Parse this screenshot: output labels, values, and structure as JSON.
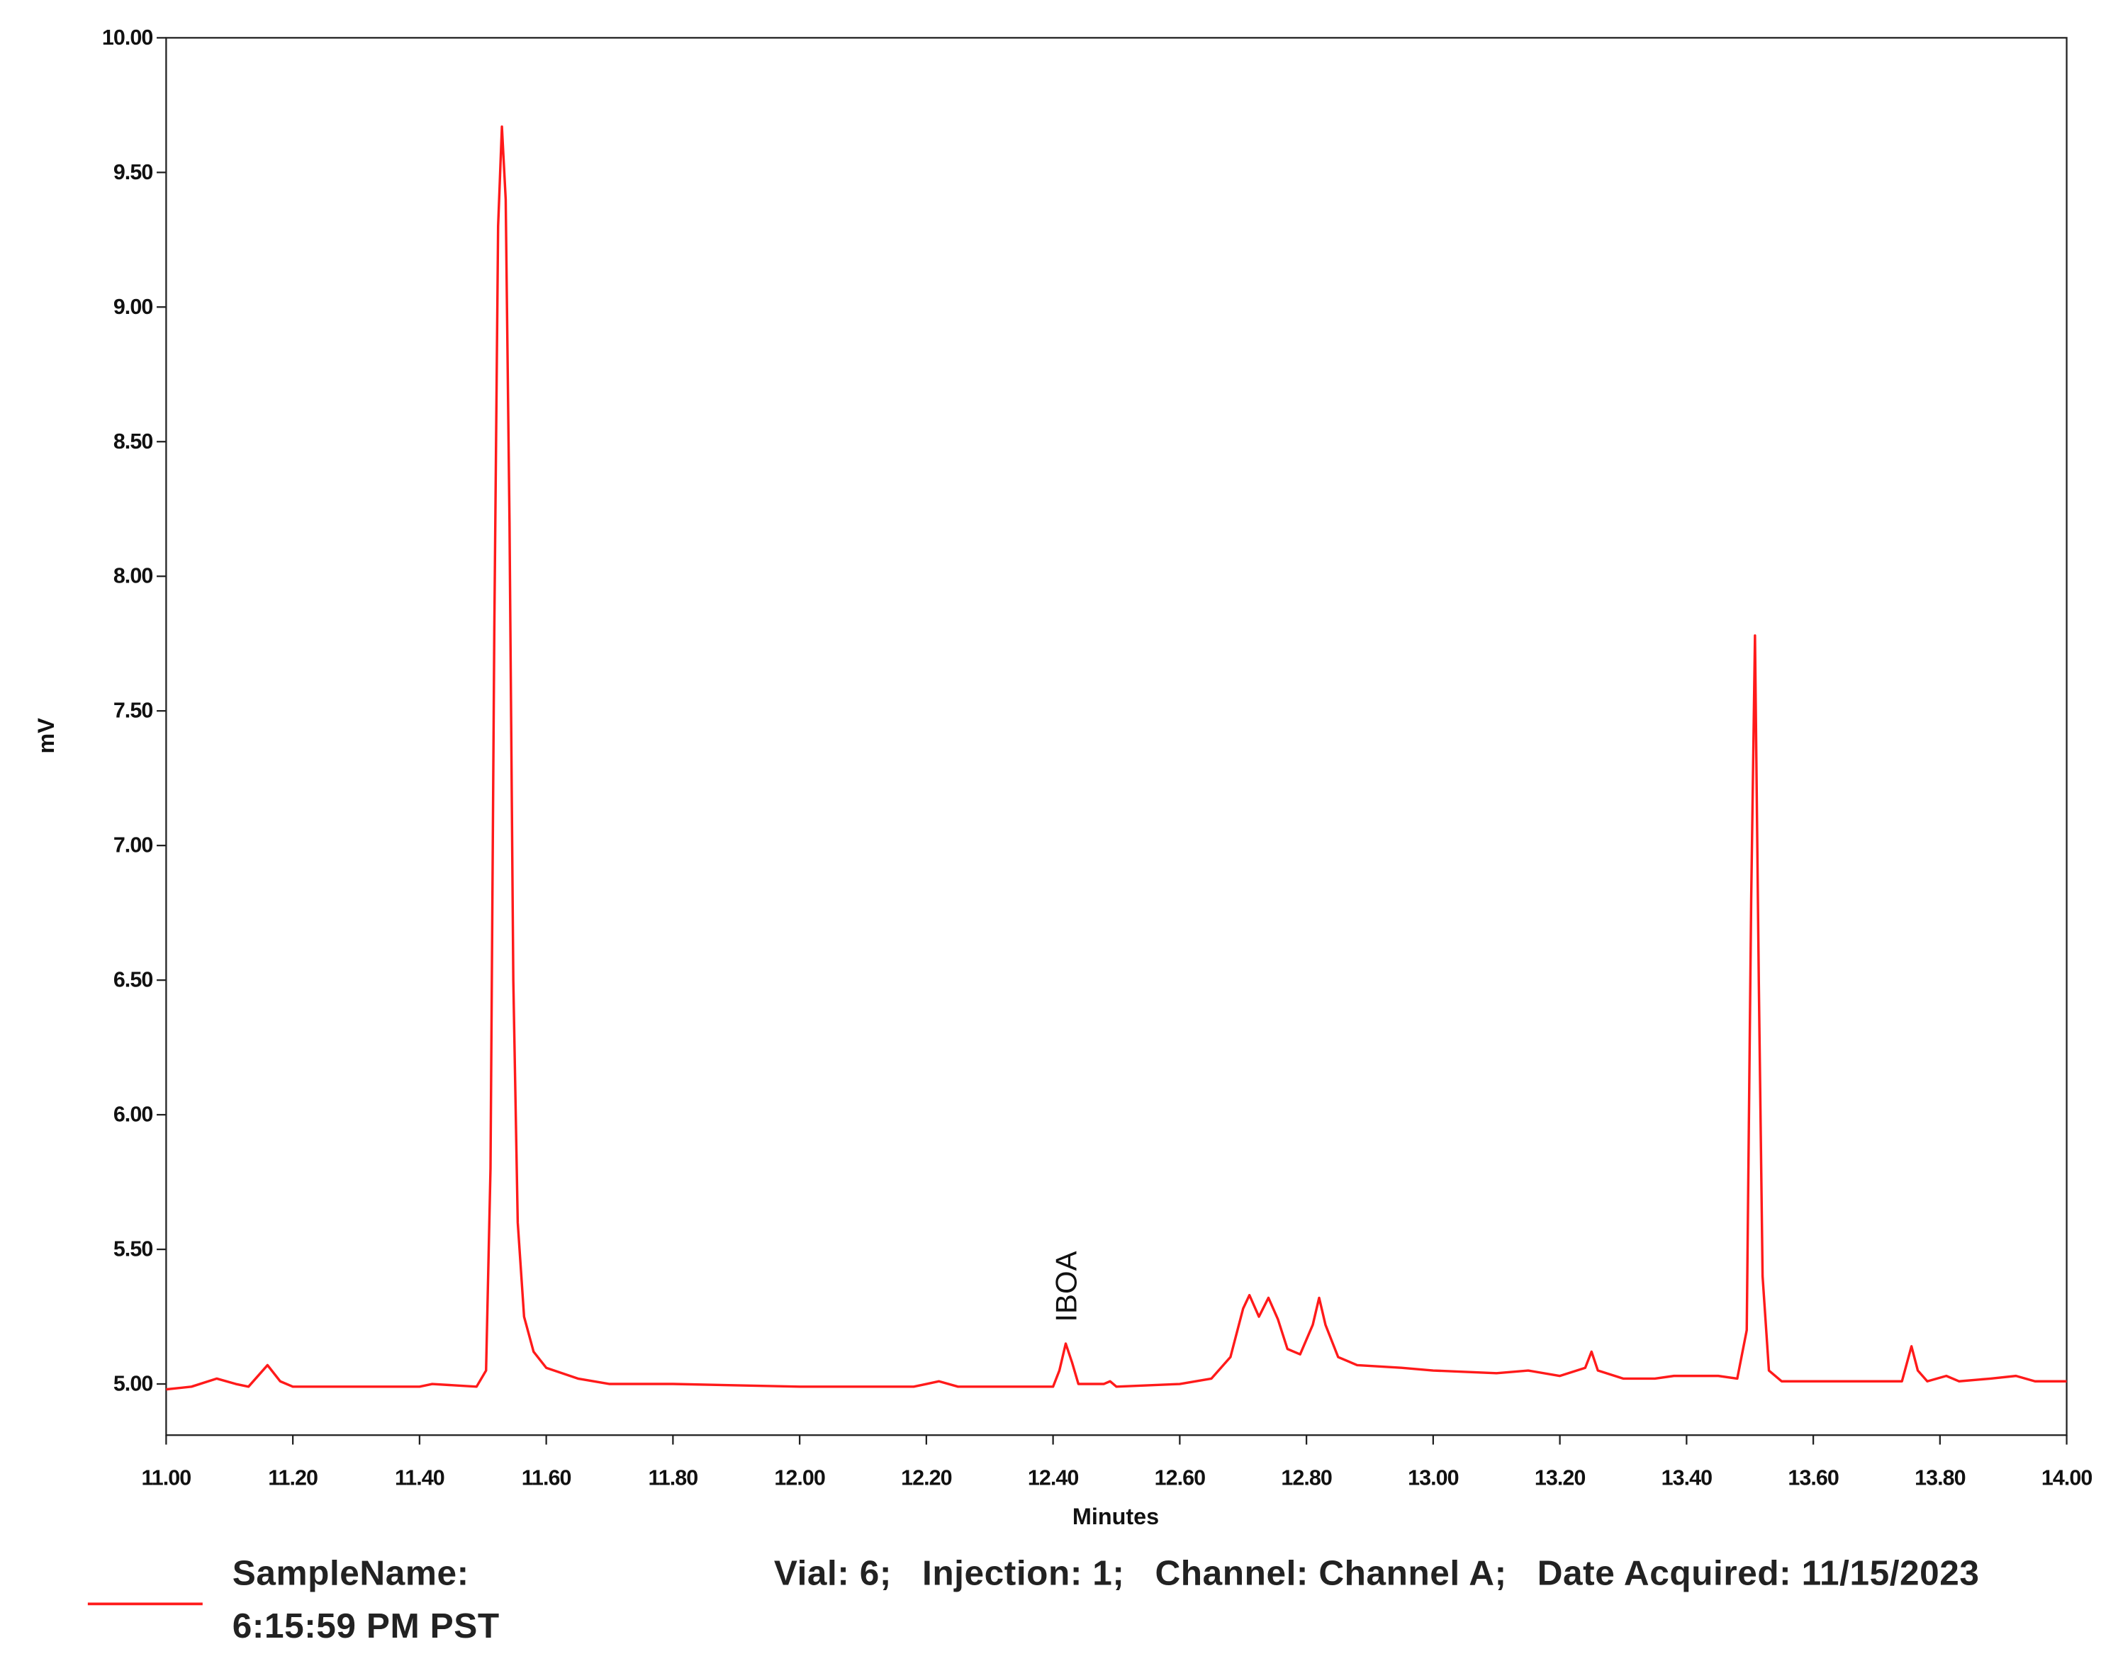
{
  "chart_data": {
    "type": "line",
    "x_label": "Minutes",
    "y_label": "mV",
    "annotations": [
      {
        "text": "IBOA",
        "x": 12.42,
        "y": 5.2
      }
    ],
    "xlim": [
      11.0,
      14.0
    ],
    "ylim": [
      4.81,
      10.0
    ],
    "xticks": [
      {
        "value": 11.0,
        "label": "11.00"
      },
      {
        "value": 11.2,
        "label": "11.20"
      },
      {
        "value": 11.4,
        "label": "11.40"
      },
      {
        "value": 11.6,
        "label": "11.60"
      },
      {
        "value": 11.8,
        "label": "11.80"
      },
      {
        "value": 12.0,
        "label": "12.00"
      },
      {
        "value": 12.2,
        "label": "12.20"
      },
      {
        "value": 12.4,
        "label": "12.40"
      },
      {
        "value": 12.6,
        "label": "12.60"
      },
      {
        "value": 12.8,
        "label": "12.80"
      },
      {
        "value": 13.0,
        "label": "13.00"
      },
      {
        "value": 13.2,
        "label": "13.20"
      },
      {
        "value": 13.4,
        "label": "13.40"
      },
      {
        "value": 13.6,
        "label": "13.60"
      },
      {
        "value": 13.8,
        "label": "13.80"
      },
      {
        "value": 14.0,
        "label": "14.00"
      }
    ],
    "yticks": [
      {
        "value": 5.0,
        "label": "5.00"
      },
      {
        "value": 5.5,
        "label": "5.50"
      },
      {
        "value": 6.0,
        "label": "6.00"
      },
      {
        "value": 6.5,
        "label": "6.50"
      },
      {
        "value": 7.0,
        "label": "7.00"
      },
      {
        "value": 7.5,
        "label": "7.50"
      },
      {
        "value": 8.0,
        "label": "8.00"
      },
      {
        "value": 8.5,
        "label": "8.50"
      },
      {
        "value": 9.0,
        "label": "9.00"
      },
      {
        "value": 9.5,
        "label": "9.50"
      },
      {
        "value": 10.0,
        "label": "10.00"
      }
    ],
    "grid": false,
    "x": [
      11.0,
      11.04,
      11.08,
      11.11,
      11.13,
      11.16,
      11.18,
      11.2,
      11.3,
      11.4,
      11.42,
      11.49,
      11.505,
      11.512,
      11.518,
      11.524,
      11.53,
      11.536,
      11.542,
      11.548,
      11.555,
      11.565,
      11.58,
      11.6,
      11.65,
      11.7,
      11.8,
      12.0,
      12.18,
      12.2,
      12.22,
      12.25,
      12.4,
      12.41,
      12.42,
      12.43,
      12.44,
      12.48,
      12.49,
      12.5,
      12.6,
      12.65,
      12.68,
      12.7,
      12.71,
      12.725,
      12.74,
      12.755,
      12.77,
      12.79,
      12.81,
      12.82,
      12.83,
      12.85,
      12.88,
      12.95,
      13.0,
      13.1,
      13.15,
      13.2,
      13.24,
      13.25,
      13.26,
      13.3,
      13.35,
      13.38,
      13.45,
      13.48,
      13.495,
      13.502,
      13.508,
      13.514,
      13.52,
      13.53,
      13.55,
      13.74,
      13.755,
      13.765,
      13.78,
      13.81,
      13.83,
      13.88,
      13.92,
      13.95,
      14.0
    ],
    "series": [
      {
        "name": "SampleName:                              Vial: 6;   Injection: 1;   Channel: Channel A;   Date Acquired: 11/15/2023 6:15:59 PM PST",
        "color": "#ff1a1a",
        "values": [
          4.98,
          4.99,
          5.02,
          5.0,
          4.99,
          5.07,
          5.01,
          4.99,
          4.99,
          4.99,
          5.0,
          4.99,
          5.05,
          5.8,
          7.8,
          9.3,
          9.67,
          9.4,
          8.2,
          6.5,
          5.6,
          5.25,
          5.12,
          5.06,
          5.02,
          5.0,
          5.0,
          4.99,
          4.99,
          5.0,
          5.01,
          4.99,
          4.99,
          5.05,
          5.15,
          5.08,
          5.0,
          5.0,
          5.01,
          4.99,
          5.0,
          5.02,
          5.1,
          5.28,
          5.33,
          5.25,
          5.32,
          5.24,
          5.13,
          5.11,
          5.22,
          5.32,
          5.22,
          5.1,
          5.07,
          5.06,
          5.05,
          5.04,
          5.05,
          5.03,
          5.06,
          5.12,
          5.05,
          5.02,
          5.02,
          5.03,
          5.03,
          5.02,
          5.2,
          6.8,
          7.78,
          6.5,
          5.4,
          5.05,
          5.01,
          5.01,
          5.14,
          5.05,
          5.01,
          5.03,
          5.01,
          5.02,
          5.03,
          5.01,
          5.01
        ]
      }
    ]
  }
}
